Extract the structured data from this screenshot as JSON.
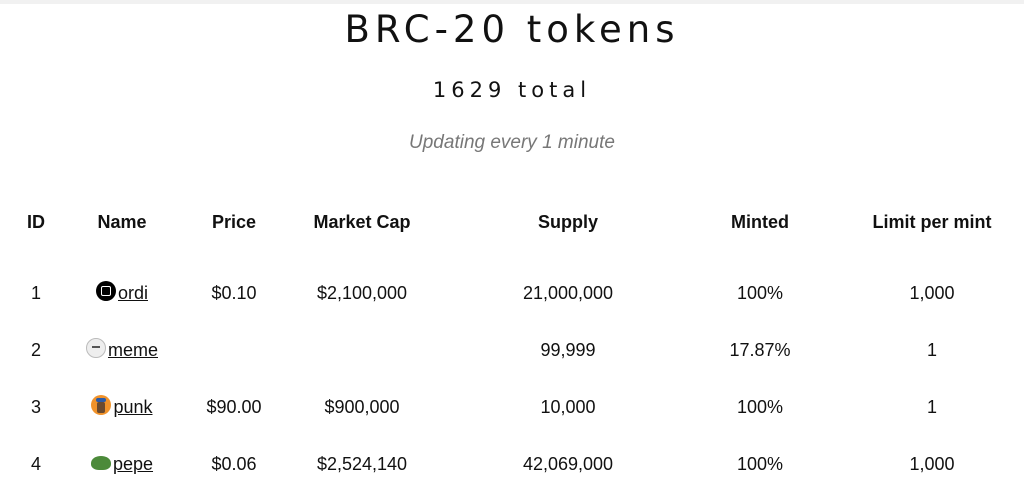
{
  "header": {
    "title": "BRC-20 tokens",
    "total": "1629 total",
    "update_note": "Updating every 1 minute"
  },
  "table": {
    "columns": [
      "ID",
      "Name",
      "Price",
      "Market Cap",
      "Supply",
      "Minted",
      "Limit per mint"
    ],
    "rows": [
      {
        "id": "1",
        "name": "ordi",
        "icon": "ordi-logo-icon",
        "price": "$0.10",
        "market_cap": "$2,100,000",
        "supply": "21,000,000",
        "minted": "100%",
        "limit": "1,000"
      },
      {
        "id": "2",
        "name": "meme",
        "icon": "meme-face-icon",
        "price": "",
        "market_cap": "",
        "supply": "99,999",
        "minted": "17.87%",
        "limit": "1"
      },
      {
        "id": "3",
        "name": "punk",
        "icon": "punk-avatar-icon",
        "price": "$90.00",
        "market_cap": "$900,000",
        "supply": "10,000",
        "minted": "100%",
        "limit": "1"
      },
      {
        "id": "4",
        "name": "pepe",
        "icon": "pepe-frog-icon",
        "price": "$0.06",
        "market_cap": "$2,524,140",
        "supply": "42,069,000",
        "minted": "100%",
        "limit": "1,000"
      }
    ]
  }
}
